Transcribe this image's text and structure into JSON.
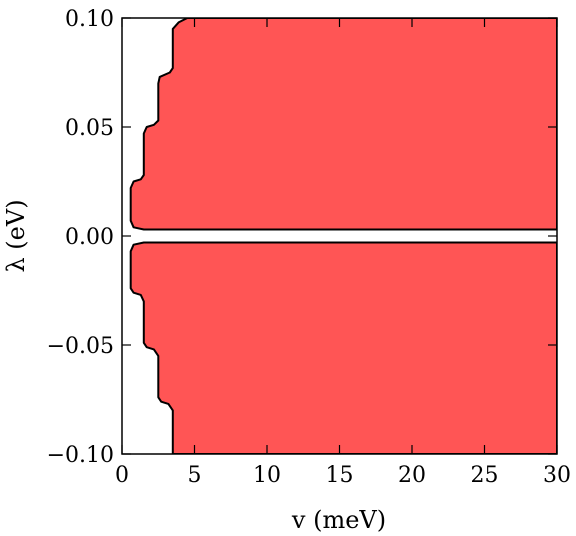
{
  "chart_data": {
    "type": "area",
    "title": "",
    "xlabel": "v (meV)",
    "ylabel": "λ (eV)",
    "xlim": [
      0,
      30
    ],
    "ylim": [
      -0.1,
      0.1
    ],
    "xticks": [
      {
        "value": 0,
        "label": "0"
      },
      {
        "value": 5,
        "label": "5"
      },
      {
        "value": 10,
        "label": "10"
      },
      {
        "value": 15,
        "label": "15"
      },
      {
        "value": 20,
        "label": "20"
      },
      {
        "value": 25,
        "label": "25"
      },
      {
        "value": 30,
        "label": "30"
      }
    ],
    "yticks": [
      {
        "value": 0.1,
        "label": "0.10"
      },
      {
        "value": 0.05,
        "label": "0.05"
      },
      {
        "value": 0.0,
        "label": "0.00"
      },
      {
        "value": -0.05,
        "label": "−0.05"
      },
      {
        "value": -0.1,
        "label": "−0.10"
      }
    ],
    "fill_color": "#ff5555",
    "edge_color": "#000000",
    "grid": false,
    "regions": [
      {
        "polygon": [
          [
            4.5,
            0.1
          ],
          [
            3.9,
            0.098
          ],
          [
            3.5,
            0.095
          ],
          [
            3.5,
            0.077
          ],
          [
            3.3,
            0.075
          ],
          [
            2.6,
            0.073
          ],
          [
            2.5,
            0.07
          ],
          [
            2.5,
            0.053
          ],
          [
            2.2,
            0.051
          ],
          [
            1.7,
            0.05
          ],
          [
            1.5,
            0.047
          ],
          [
            1.5,
            0.028
          ],
          [
            1.3,
            0.026
          ],
          [
            0.8,
            0.025
          ],
          [
            0.6,
            0.022
          ],
          [
            0.6,
            0.007
          ],
          [
            0.8,
            0.004
          ],
          [
            1.5,
            0.003
          ],
          [
            30.0,
            0.003
          ],
          [
            30.0,
            0.1
          ]
        ]
      },
      {
        "polygon": [
          [
            1.5,
            -0.003
          ],
          [
            0.8,
            -0.004
          ],
          [
            0.6,
            -0.007
          ],
          [
            0.6,
            -0.024
          ],
          [
            0.8,
            -0.026
          ],
          [
            1.3,
            -0.027
          ],
          [
            1.5,
            -0.03
          ],
          [
            1.5,
            -0.049
          ],
          [
            1.7,
            -0.051
          ],
          [
            2.2,
            -0.052
          ],
          [
            2.5,
            -0.055
          ],
          [
            2.5,
            -0.074
          ],
          [
            2.7,
            -0.076
          ],
          [
            3.2,
            -0.077
          ],
          [
            3.5,
            -0.08
          ],
          [
            3.5,
            -0.1
          ],
          [
            30.0,
            -0.1
          ],
          [
            30.0,
            -0.003
          ]
        ]
      }
    ]
  }
}
